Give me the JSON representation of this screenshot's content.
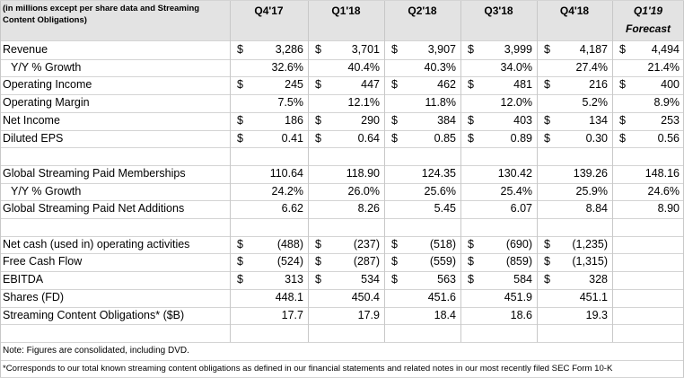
{
  "table": {
    "corner_note": "(in millions except per share data and Streaming Content Obligations)",
    "columns": [
      "Q4'17",
      "Q1'18",
      "Q2'18",
      "Q3'18",
      "Q4'18",
      "Q1'19"
    ],
    "forecast_label": "Forecast",
    "sections": [
      {
        "rows": [
          {
            "label": "Revenue",
            "cells": [
              {
                "currency": "$",
                "value": "3,286"
              },
              {
                "currency": "$",
                "value": "3,701"
              },
              {
                "currency": "$",
                "value": "3,907"
              },
              {
                "currency": "$",
                "value": "3,999"
              },
              {
                "currency": "$",
                "value": "4,187"
              },
              {
                "currency": "$",
                "value": "4,494"
              }
            ]
          },
          {
            "label": "Y/Y % Growth",
            "indent": true,
            "cells": [
              {
                "value": "32.6%"
              },
              {
                "value": "40.4%"
              },
              {
                "value": "40.3%"
              },
              {
                "value": "34.0%"
              },
              {
                "value": "27.4%"
              },
              {
                "value": "21.4%"
              }
            ]
          },
          {
            "label": "Operating Income",
            "cells": [
              {
                "currency": "$",
                "value": "245"
              },
              {
                "currency": "$",
                "value": "447"
              },
              {
                "currency": "$",
                "value": "462"
              },
              {
                "currency": "$",
                "value": "481"
              },
              {
                "currency": "$",
                "value": "216"
              },
              {
                "currency": "$",
                "value": "400"
              }
            ]
          },
          {
            "label": "Operating Margin",
            "cells": [
              {
                "value": "7.5%"
              },
              {
                "value": "12.1%"
              },
              {
                "value": "11.8%"
              },
              {
                "value": "12.0%"
              },
              {
                "value": "5.2%"
              },
              {
                "value": "8.9%"
              }
            ]
          },
          {
            "label": "Net Income",
            "cells": [
              {
                "currency": "$",
                "value": "186"
              },
              {
                "currency": "$",
                "value": "290"
              },
              {
                "currency": "$",
                "value": "384"
              },
              {
                "currency": "$",
                "value": "403"
              },
              {
                "currency": "$",
                "value": "134"
              },
              {
                "currency": "$",
                "value": "253"
              }
            ]
          },
          {
            "label": "Diluted EPS",
            "cells": [
              {
                "currency": "$",
                "value": "0.41"
              },
              {
                "currency": "$",
                "value": "0.64"
              },
              {
                "currency": "$",
                "value": "0.85"
              },
              {
                "currency": "$",
                "value": "0.89"
              },
              {
                "currency": "$",
                "value": "0.30"
              },
              {
                "currency": "$",
                "value": "0.56"
              }
            ]
          }
        ]
      },
      {
        "rows": [
          {
            "label": "Global Streaming Paid Memberships",
            "cells": [
              {
                "value": "110.64"
              },
              {
                "value": "118.90"
              },
              {
                "value": "124.35"
              },
              {
                "value": "130.42"
              },
              {
                "value": "139.26"
              },
              {
                "value": "148.16"
              }
            ]
          },
          {
            "label": "Y/Y % Growth",
            "indent": true,
            "cells": [
              {
                "value": "24.2%"
              },
              {
                "value": "26.0%"
              },
              {
                "value": "25.6%"
              },
              {
                "value": "25.4%"
              },
              {
                "value": "25.9%"
              },
              {
                "value": "24.6%"
              }
            ]
          },
          {
            "label": "Global Streaming Paid Net Additions",
            "cells": [
              {
                "value": "6.62"
              },
              {
                "value": "8.26"
              },
              {
                "value": "5.45"
              },
              {
                "value": "6.07"
              },
              {
                "value": "8.84"
              },
              {
                "value": "8.90"
              }
            ]
          }
        ]
      },
      {
        "rows": [
          {
            "label": "Net cash (used in) operating activities",
            "cells": [
              {
                "currency": "$",
                "value": "(488)"
              },
              {
                "currency": "$",
                "value": "(237)"
              },
              {
                "currency": "$",
                "value": "(518)"
              },
              {
                "currency": "$",
                "value": "(690)"
              },
              {
                "currency": "$",
                "value": "(1,235)"
              }
            ]
          },
          {
            "label": "Free Cash Flow",
            "cells": [
              {
                "currency": "$",
                "value": "(524)"
              },
              {
                "currency": "$",
                "value": "(287)"
              },
              {
                "currency": "$",
                "value": "(559)"
              },
              {
                "currency": "$",
                "value": "(859)"
              },
              {
                "currency": "$",
                "value": "(1,315)"
              }
            ]
          },
          {
            "label": "EBITDA",
            "cells": [
              {
                "currency": "$",
                "value": "313"
              },
              {
                "currency": "$",
                "value": "534"
              },
              {
                "currency": "$",
                "value": "563"
              },
              {
                "currency": "$",
                "value": "584"
              },
              {
                "currency": "$",
                "value": "328"
              }
            ]
          },
          {
            "label": "Shares (FD)",
            "cells": [
              {
                "value": "448.1"
              },
              {
                "value": "450.4"
              },
              {
                "value": "451.6"
              },
              {
                "value": "451.9"
              },
              {
                "value": "451.1"
              }
            ]
          },
          {
            "label": "Streaming Content Obligations* ($B)",
            "cells": [
              {
                "value": "17.7"
              },
              {
                "value": "17.9"
              },
              {
                "value": "18.4"
              },
              {
                "value": "18.6"
              },
              {
                "value": "19.3"
              }
            ]
          }
        ]
      }
    ],
    "note": "Note: Figures are consolidated, including DVD.",
    "footnote": "*Corresponds to our total known streaming content obligations as defined in our financial statements and related notes in our most recently filed SEC Form 10-K"
  }
}
